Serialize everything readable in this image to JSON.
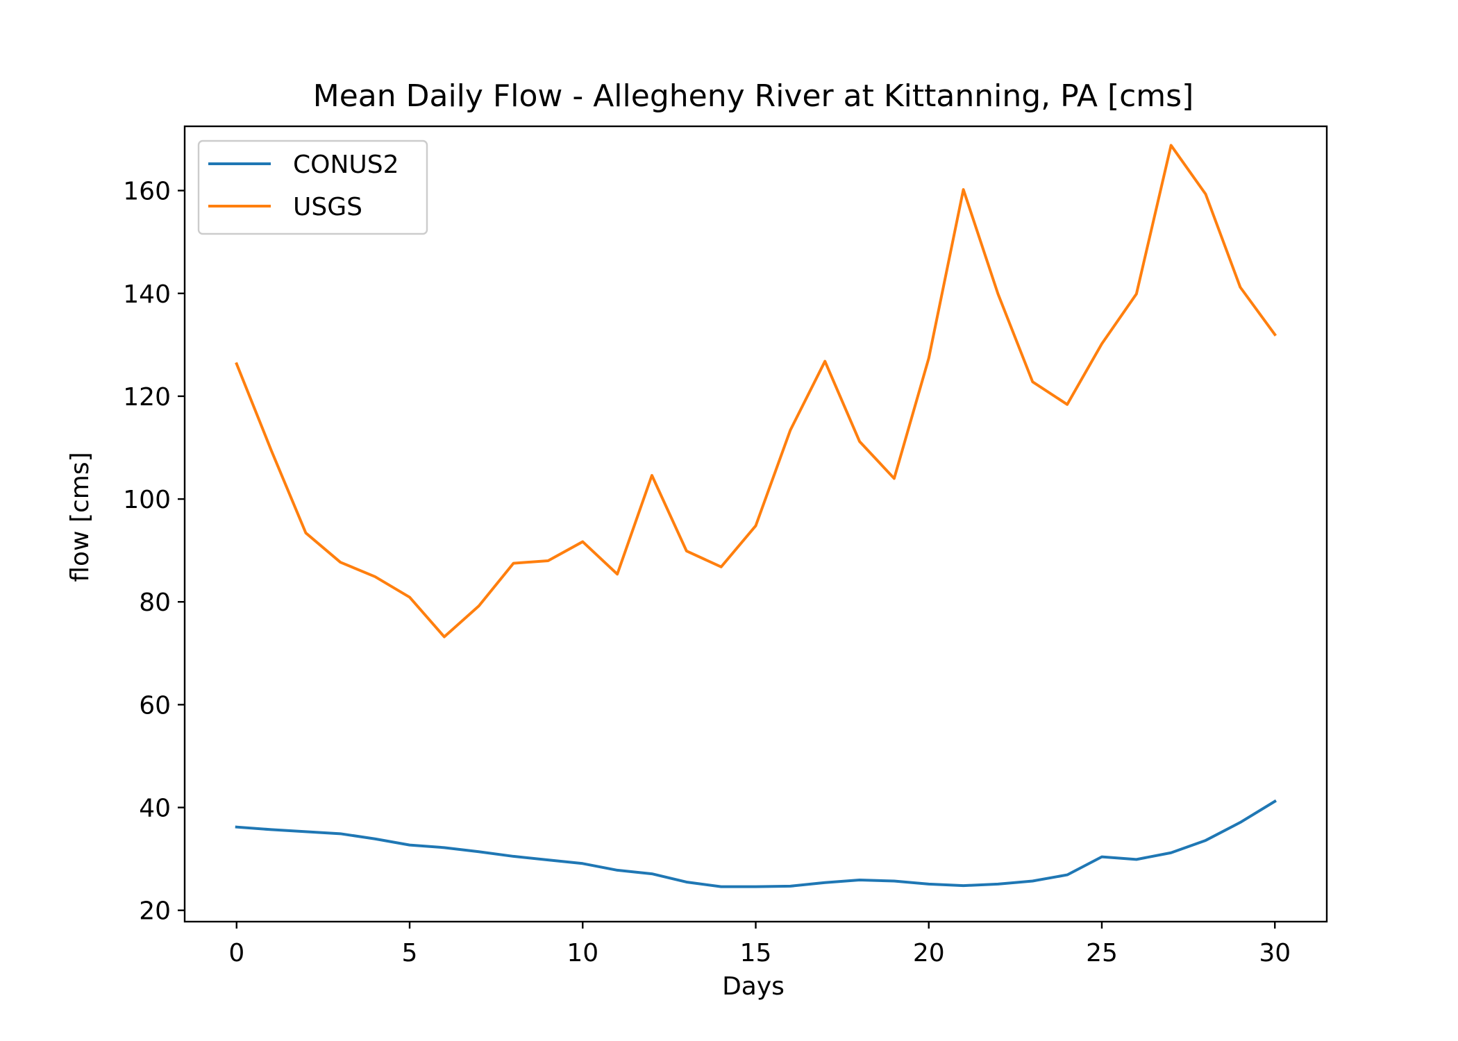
{
  "chart_data": {
    "type": "line",
    "title": "Mean Daily Flow - Allegheny River at Kittanning, PA [cms]",
    "xlabel": "Days",
    "ylabel": "flow [cms]",
    "xlim": [
      -1.5,
      31.5
    ],
    "ylim": [
      17.8,
      172.5
    ],
    "xticks": [
      0,
      5,
      10,
      15,
      20,
      25,
      30
    ],
    "yticks": [
      20,
      40,
      60,
      80,
      100,
      120,
      140,
      160
    ],
    "grid": false,
    "legend_position": "top-left",
    "x": [
      0,
      1,
      2,
      3,
      4,
      5,
      6,
      7,
      8,
      9,
      10,
      11,
      12,
      13,
      14,
      15,
      16,
      17,
      18,
      19,
      20,
      21,
      22,
      23,
      24,
      25,
      26,
      27,
      28,
      29,
      30
    ],
    "series": [
      {
        "name": "CONUS2",
        "color": "#1f77b4",
        "values": [
          36.2,
          35.7,
          35.3,
          34.9,
          33.9,
          32.7,
          32.2,
          31.4,
          30.5,
          29.8,
          29.1,
          27.8,
          27.1,
          25.5,
          24.6,
          24.6,
          24.7,
          25.4,
          25.9,
          25.7,
          25.1,
          24.8,
          25.1,
          25.7,
          26.9,
          30.4,
          29.9,
          31.2,
          33.6,
          37.1,
          41.2
        ]
      },
      {
        "name": "USGS",
        "color": "#ff7f0e",
        "values": [
          126.3,
          109.5,
          93.4,
          87.7,
          84.9,
          80.9,
          73.2,
          79.2,
          87.5,
          88.0,
          91.7,
          85.4,
          104.6,
          89.9,
          86.8,
          94.8,
          113.4,
          126.8,
          111.2,
          104.0,
          127.4,
          160.2,
          139.9,
          122.8,
          118.4,
          130.2,
          139.9,
          168.8,
          159.3,
          141.2,
          132.0
        ]
      }
    ]
  }
}
